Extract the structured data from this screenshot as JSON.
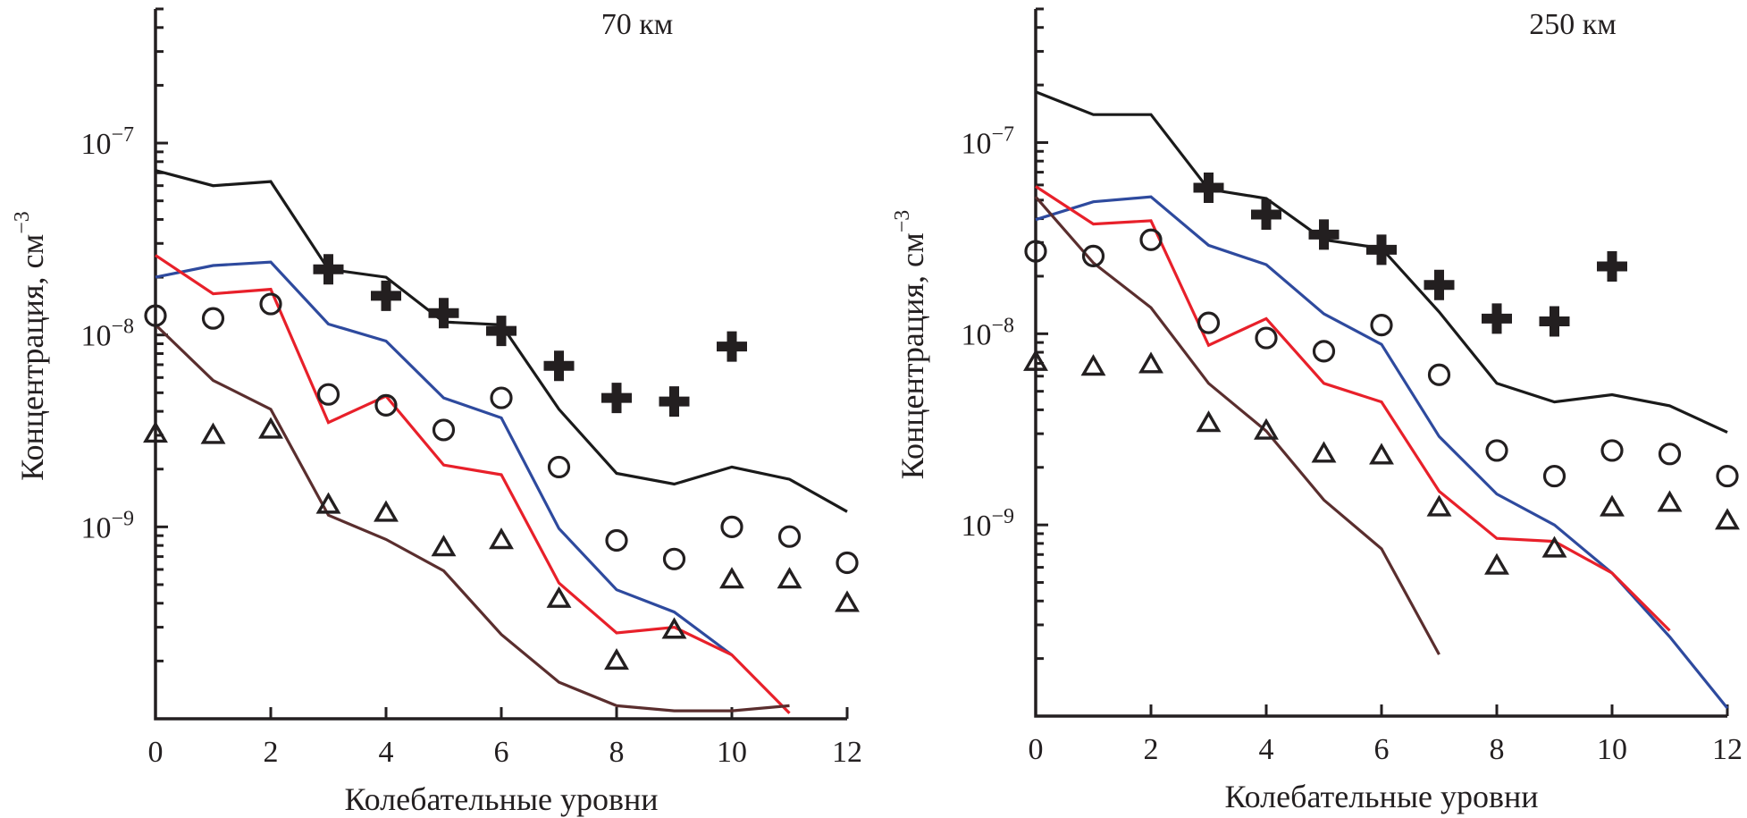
{
  "chart_data": [
    {
      "type": "line",
      "title": "70 км",
      "xlabel": "Колебательные уровни",
      "ylabel": "Концентрация, см",
      "ylabel_exponent": "−3",
      "yscale": "log",
      "xlim": [
        0,
        12
      ],
      "ylim": [
        1e-10,
        5e-07
      ],
      "x_ticks": [
        0,
        2,
        4,
        6,
        8,
        10,
        12
      ],
      "y_ticks": [
        {
          "value": 1e-07,
          "mantissa": "10",
          "exponent": "−7"
        },
        {
          "value": 1e-08,
          "mantissa": "10",
          "exponent": "−8"
        },
        {
          "value": 1e-09,
          "mantissa": "10",
          "exponent": "−9"
        }
      ],
      "grid": false,
      "legend": "none",
      "series": [
        {
          "name": "line-black",
          "kind": "line",
          "color": "#1a1a1a",
          "x": [
            0,
            1,
            2,
            3,
            4,
            5,
            6,
            7,
            8,
            9,
            10,
            11,
            12
          ],
          "values": [
            7.2e-08,
            6e-08,
            6.3e-08,
            2.2e-08,
            2e-08,
            1.17e-08,
            1.13e-08,
            4.1e-09,
            1.9e-09,
            1.67e-09,
            2.05e-09,
            1.77e-09,
            1.2e-09
          ]
        },
        {
          "name": "line-blue",
          "kind": "line",
          "color": "#2e4a9e",
          "x": [
            0,
            1,
            2,
            3,
            4,
            5,
            6,
            7,
            8,
            9,
            10
          ],
          "values": [
            2e-08,
            2.3e-08,
            2.4e-08,
            1.14e-08,
            9.3e-09,
            4.7e-09,
            3.7e-09,
            9.8e-10,
            4.7e-10,
            3.6e-10,
            2.15e-10
          ]
        },
        {
          "name": "line-red",
          "kind": "line",
          "color": "#e8202a",
          "x": [
            0,
            1,
            2,
            3,
            4,
            5,
            6,
            7,
            8,
            9,
            10,
            11
          ],
          "values": [
            2.6e-08,
            1.64e-08,
            1.73e-08,
            3.5e-09,
            4.8e-09,
            2.1e-09,
            1.87e-09,
            5.1e-10,
            2.8e-10,
            3e-10,
            2.15e-10,
            1.07e-10
          ]
        },
        {
          "name": "line-brown",
          "kind": "line",
          "color": "#5a2e2e",
          "x": [
            0,
            1,
            2,
            3,
            4,
            5,
            6,
            7,
            8,
            9,
            10,
            11
          ],
          "values": [
            1.13e-08,
            5.8e-09,
            4.1e-09,
            1.15e-09,
            8.6e-10,
            5.9e-10,
            2.75e-10,
            1.55e-10,
            1.17e-10,
            1.1e-10,
            1.1e-10,
            1.17e-10
          ]
        },
        {
          "name": "plus-markers",
          "kind": "plus",
          "color": "#231f20",
          "x": [
            3,
            4,
            5,
            6,
            7,
            8,
            9,
            10
          ],
          "values": [
            2.2e-08,
            1.6e-08,
            1.3e-08,
            1.05e-08,
            6.9e-09,
            4.7e-09,
            4.5e-09,
            8.7e-09
          ]
        },
        {
          "name": "circle-markers",
          "kind": "circle",
          "color": "#231f20",
          "x": [
            0,
            1,
            2,
            3,
            4,
            5,
            6,
            7,
            8,
            9,
            10,
            11,
            12
          ],
          "values": [
            1.26e-08,
            1.22e-08,
            1.45e-08,
            4.9e-09,
            4.3e-09,
            3.2e-09,
            4.7e-09,
            2.05e-09,
            8.5e-10,
            6.8e-10,
            1e-09,
            8.9e-10,
            6.5e-10
          ]
        },
        {
          "name": "triangle-markers",
          "kind": "triangle",
          "color": "#231f20",
          "x": [
            0,
            1,
            2,
            3,
            4,
            5,
            6,
            7,
            8,
            9,
            10,
            11,
            12
          ],
          "values": [
            3.05e-09,
            3e-09,
            3.2e-09,
            1.3e-09,
            1.18e-09,
            7.8e-10,
            8.5e-10,
            4.2e-10,
            2e-10,
            2.9e-10,
            5.3e-10,
            5.3e-10,
            4e-10
          ]
        }
      ]
    },
    {
      "type": "line",
      "title": "250 км",
      "xlabel": "Колебательные уровни",
      "ylabel": "Концентрация, см",
      "ylabel_exponent": "−3",
      "yscale": "log",
      "xlim": [
        0,
        12
      ],
      "ylim": [
        1e-10,
        5e-07
      ],
      "x_ticks": [
        0,
        2,
        4,
        6,
        8,
        10,
        12
      ],
      "y_ticks": [
        {
          "value": 1e-07,
          "mantissa": "10",
          "exponent": "−7"
        },
        {
          "value": 1e-08,
          "mantissa": "10",
          "exponent": "−8"
        },
        {
          "value": 1e-09,
          "mantissa": "10",
          "exponent": "−9"
        }
      ],
      "grid": false,
      "legend": "none",
      "series": [
        {
          "name": "line-black",
          "kind": "line",
          "color": "#1a1a1a",
          "x": [
            0,
            1,
            2,
            3,
            4,
            5,
            6,
            7,
            8,
            9,
            10,
            11,
            12
          ],
          "values": [
            1.84e-07,
            1.4e-07,
            1.4e-07,
            5.7e-08,
            5.1e-08,
            3.1e-08,
            2.8e-08,
            1.3e-08,
            5.5e-09,
            4.4e-09,
            4.8e-09,
            4.2e-09,
            3.05e-09
          ]
        },
        {
          "name": "line-blue",
          "kind": "line",
          "color": "#2e4a9e",
          "x": [
            0,
            1,
            2,
            3,
            4,
            5,
            6,
            7,
            8,
            9,
            10,
            11,
            12
          ],
          "values": [
            3.95e-08,
            4.9e-08,
            5.2e-08,
            2.9e-08,
            2.3e-08,
            1.27e-08,
            8.8e-09,
            2.9e-09,
            1.45e-09,
            1e-09,
            5.6e-10,
            2.6e-10,
            1.1e-10
          ]
        },
        {
          "name": "line-red",
          "kind": "line",
          "color": "#e8202a",
          "x": [
            0,
            1,
            2,
            3,
            4,
            5,
            6,
            7,
            8,
            9,
            10,
            11
          ],
          "values": [
            5.9e-08,
            3.75e-08,
            3.9e-08,
            8.7e-09,
            1.2e-08,
            5.5e-09,
            4.4e-09,
            1.5e-09,
            8.5e-10,
            8.2e-10,
            5.6e-10,
            2.8e-10
          ]
        },
        {
          "name": "line-brown",
          "kind": "line",
          "color": "#5a2e2e",
          "x": [
            0,
            1,
            2,
            3,
            4,
            5,
            6,
            7
          ],
          "values": [
            5.2e-08,
            2.35e-08,
            1.37e-08,
            5.5e-09,
            3.1e-09,
            1.35e-09,
            7.5e-10,
            2.1e-10
          ]
        },
        {
          "name": "plus-markers",
          "kind": "plus",
          "color": "#231f20",
          "x": [
            3,
            4,
            5,
            6,
            7,
            8,
            9,
            10
          ],
          "values": [
            5.8e-08,
            4.2e-08,
            3.3e-08,
            2.75e-08,
            1.8e-08,
            1.2e-08,
            1.16e-08,
            2.25e-08
          ]
        },
        {
          "name": "circle-markers",
          "kind": "circle",
          "color": "#231f20",
          "x": [
            0,
            1,
            2,
            3,
            4,
            5,
            6,
            7,
            8,
            9,
            10,
            11,
            12
          ],
          "values": [
            2.7e-08,
            2.55e-08,
            3.1e-08,
            1.14e-08,
            9.5e-09,
            8.1e-09,
            1.11e-08,
            6.1e-09,
            2.45e-09,
            1.8e-09,
            2.45e-09,
            2.35e-09,
            1.8e-09
          ]
        },
        {
          "name": "triangle-markers",
          "kind": "triangle",
          "color": "#231f20",
          "x": [
            0,
            1,
            2,
            3,
            4,
            5,
            6,
            7,
            8,
            9,
            10,
            11,
            12
          ],
          "values": [
            7.1e-09,
            6.7e-09,
            6.9e-09,
            3.4e-09,
            3.1e-09,
            2.35e-09,
            2.3e-09,
            1.23e-09,
            6.1e-10,
            7.5e-10,
            1.23e-09,
            1.3e-09,
            1.05e-09
          ]
        }
      ]
    }
  ]
}
